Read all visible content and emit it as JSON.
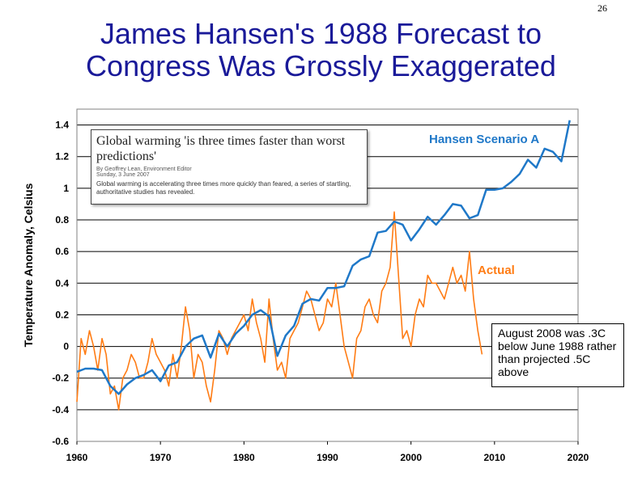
{
  "slide": {
    "page_number": "26",
    "title_line1": "James Hansen's 1988 Forecast to",
    "title_line2": "Congress Was Grossly Exaggerated"
  },
  "inset": {
    "headline": "Global warming 'is three times faster than worst predictions'",
    "byline": "By Geoffrey Lean, Environment Editor",
    "date": "Sunday, 3 June 2007",
    "body": "Global warming is accelerating three times more quickly than feared, a series of startling, authoritative studies has revealed."
  },
  "note": {
    "text": "August 2008 was .3C below June 1988 rather than projected .5C above"
  },
  "colors": {
    "title": "#1a1a99",
    "hansen": "#1f78c8",
    "actual": "#ff7c14",
    "grid": "#000000"
  },
  "chart_data": {
    "type": "line",
    "ylabel": "Temperature Anomaly, Celsius",
    "xlabel": "",
    "xlim": [
      1960,
      2020
    ],
    "ylim": [
      -0.6,
      1.5
    ],
    "xticks": [
      "1960",
      "1970",
      "1980",
      "1990",
      "2000",
      "2010",
      "2020"
    ],
    "yticks": [
      "1.4",
      "1.2",
      "1",
      "0.8",
      "0.6",
      "0.4",
      "0.2",
      "0",
      "-0.2",
      "-0.4",
      "-0.6"
    ],
    "grid": "horizontal",
    "series": [
      {
        "name": "Hansen Scenario A",
        "x": [
          1960,
          1961,
          1962,
          1963,
          1964,
          1965,
          1966,
          1967,
          1968,
          1969,
          1970,
          1971,
          1972,
          1973,
          1974,
          1975,
          1976,
          1977,
          1978,
          1979,
          1980,
          1981,
          1982,
          1983,
          1984,
          1985,
          1986,
          1987,
          1988,
          1989,
          1990,
          1991,
          1992,
          1993,
          1994,
          1995,
          1996,
          1997,
          1998,
          1999,
          2000,
          2001,
          2002,
          2003,
          2004,
          2005,
          2006,
          2007,
          2008,
          2009,
          2010,
          2011,
          2012,
          2013,
          2014,
          2015,
          2016,
          2017,
          2018,
          2019
        ],
        "y": [
          -0.16,
          -0.14,
          -0.14,
          -0.15,
          -0.25,
          -0.3,
          -0.24,
          -0.2,
          -0.18,
          -0.15,
          -0.22,
          -0.12,
          -0.1,
          0.0,
          0.05,
          0.07,
          -0.07,
          0.08,
          0.0,
          0.08,
          0.13,
          0.2,
          0.23,
          0.19,
          -0.06,
          0.07,
          0.13,
          0.27,
          0.3,
          0.29,
          0.37,
          0.37,
          0.38,
          0.51,
          0.55,
          0.57,
          0.72,
          0.73,
          0.79,
          0.77,
          0.67,
          0.74,
          0.82,
          0.77,
          0.83,
          0.9,
          0.89,
          0.81,
          0.83,
          0.99,
          0.99,
          1.0,
          1.04,
          1.09,
          1.18,
          1.13,
          1.25,
          1.23,
          1.17,
          1.43
        ]
      },
      {
        "name": "Actual",
        "x": [
          1960.0,
          1960.5,
          1961.0,
          1961.5,
          1962.0,
          1962.5,
          1963.0,
          1963.5,
          1964.0,
          1964.5,
          1965.0,
          1965.5,
          1966.0,
          1966.5,
          1967.0,
          1967.5,
          1968.0,
          1968.5,
          1969.0,
          1969.5,
          1970.0,
          1970.5,
          1971.0,
          1971.5,
          1972.0,
          1972.5,
          1973.0,
          1973.5,
          1974.0,
          1974.5,
          1975.0,
          1975.5,
          1976.0,
          1976.5,
          1977.0,
          1977.5,
          1978.0,
          1978.5,
          1979.0,
          1979.5,
          1980.0,
          1980.5,
          1981.0,
          1981.5,
          1982.0,
          1982.5,
          1983.0,
          1983.5,
          1984.0,
          1984.5,
          1985.0,
          1985.5,
          1986.0,
          1986.5,
          1987.0,
          1987.5,
          1988.0,
          1988.5,
          1989.0,
          1989.5,
          1990.0,
          1990.5,
          1991.0,
          1991.5,
          1992.0,
          1992.5,
          1993.0,
          1993.5,
          1994.0,
          1994.5,
          1995.0,
          1995.5,
          1996.0,
          1996.5,
          1997.0,
          1997.5,
          1998.0,
          1998.5,
          1999.0,
          1999.5,
          2000.0,
          2000.5,
          2001.0,
          2001.5,
          2002.0,
          2002.5,
          2003.0,
          2003.5,
          2004.0,
          2004.5,
          2005.0,
          2005.5,
          2006.0,
          2006.5,
          2007.0,
          2007.5,
          2008.0,
          2008.5
        ],
        "y": [
          -0.35,
          0.05,
          -0.05,
          0.1,
          0.0,
          -0.15,
          0.05,
          -0.05,
          -0.3,
          -0.25,
          -0.4,
          -0.2,
          -0.15,
          -0.05,
          -0.1,
          -0.2,
          -0.2,
          -0.1,
          0.05,
          -0.05,
          -0.1,
          -0.15,
          -0.25,
          -0.05,
          -0.2,
          0.0,
          0.25,
          0.1,
          -0.2,
          -0.05,
          -0.1,
          -0.25,
          -0.35,
          -0.15,
          0.1,
          0.05,
          -0.05,
          0.05,
          0.1,
          0.15,
          0.2,
          0.1,
          0.3,
          0.15,
          0.05,
          -0.1,
          0.3,
          0.05,
          -0.15,
          -0.1,
          -0.2,
          0.05,
          0.1,
          0.15,
          0.25,
          0.35,
          0.3,
          0.2,
          0.1,
          0.15,
          0.3,
          0.25,
          0.4,
          0.2,
          0.0,
          -0.1,
          -0.2,
          0.05,
          0.1,
          0.25,
          0.3,
          0.2,
          0.15,
          0.35,
          0.4,
          0.5,
          0.85,
          0.45,
          0.05,
          0.1,
          0.0,
          0.2,
          0.3,
          0.25,
          0.45,
          0.4,
          0.4,
          0.35,
          0.3,
          0.4,
          0.5,
          0.4,
          0.45,
          0.35,
          0.6,
          0.3,
          0.1,
          -0.05
        ]
      }
    ]
  }
}
